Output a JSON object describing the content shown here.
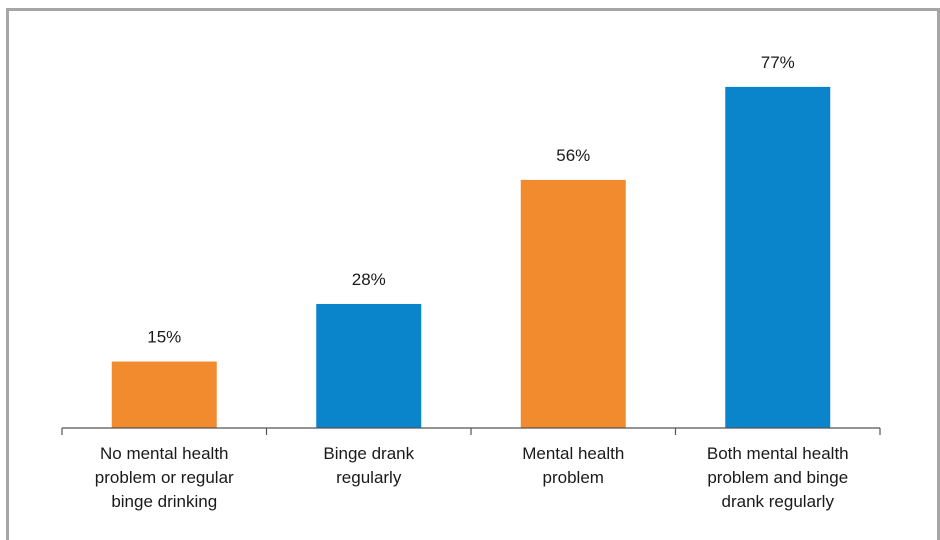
{
  "chart_data": {
    "type": "bar",
    "categories": [
      "No mental health\nproblem or regular\nbinge drinking",
      "Binge drank\nregularly",
      "Mental health\nproblem",
      "Both mental health\nproblem and binge\ndrank regularly"
    ],
    "values": [
      15,
      28,
      56,
      77
    ],
    "value_labels": [
      "15%",
      "28%",
      "56%",
      "77%"
    ],
    "colors": [
      "#F28A2E",
      "#0A85CC",
      "#F28A2E",
      "#0A85CC"
    ],
    "ylim": [
      0,
      100
    ],
    "title": "",
    "xlabel": "",
    "ylabel": "",
    "grid": false,
    "legend": "none"
  }
}
